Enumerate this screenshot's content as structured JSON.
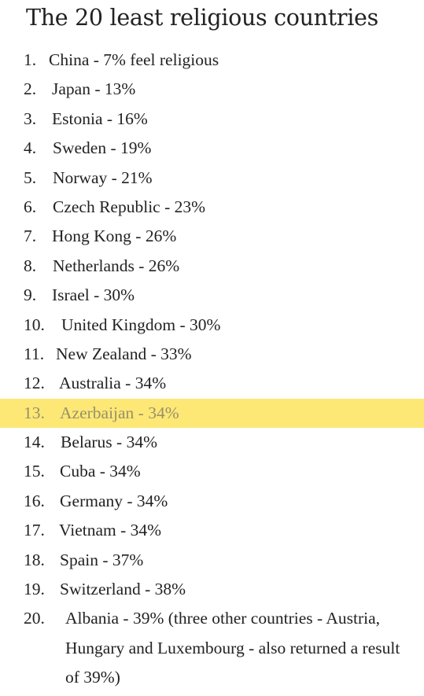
{
  "title": "The 20 least religious countries",
  "highlight_color": "#fde876",
  "items": [
    {
      "num": "1.",
      "text": "China - 7% feel religious"
    },
    {
      "num": "2.",
      "text": "Japan - 13%"
    },
    {
      "num": "3.",
      "text": "Estonia - 16%"
    },
    {
      "num": "4.",
      "text": "Sweden - 19%"
    },
    {
      "num": "5.",
      "text": "Norway - 21%"
    },
    {
      "num": "6.",
      "text": "Czech Republic - 23%"
    },
    {
      "num": "7.",
      "text": "Hong Kong - 26%"
    },
    {
      "num": "8.",
      "text": "Netherlands - 26%"
    },
    {
      "num": "9.",
      "text": "Israel - 30%"
    },
    {
      "num": "10.",
      "text": "United Kingdom - 30%"
    },
    {
      "num": "11.",
      "text": "New Zealand - 33%"
    },
    {
      "num": "12.",
      "text": "Australia - 34%"
    },
    {
      "num": "13.",
      "text": "Azerbaijan - 34%"
    },
    {
      "num": "14.",
      "text": "Belarus - 34%"
    },
    {
      "num": "15.",
      "text": "Cuba - 34%"
    },
    {
      "num": "16.",
      "text": "Germany - 34%"
    },
    {
      "num": "17.",
      "text": "Vietnam - 34%"
    },
    {
      "num": "18.",
      "text": "Spain - 37%"
    },
    {
      "num": "19.",
      "text": "Switzerland - 38%"
    },
    {
      "num": "20.",
      "text": "Albania - 39% (three other countries - Austria, Hungary and Luxembourg - also returned a result of 39%)"
    }
  ]
}
